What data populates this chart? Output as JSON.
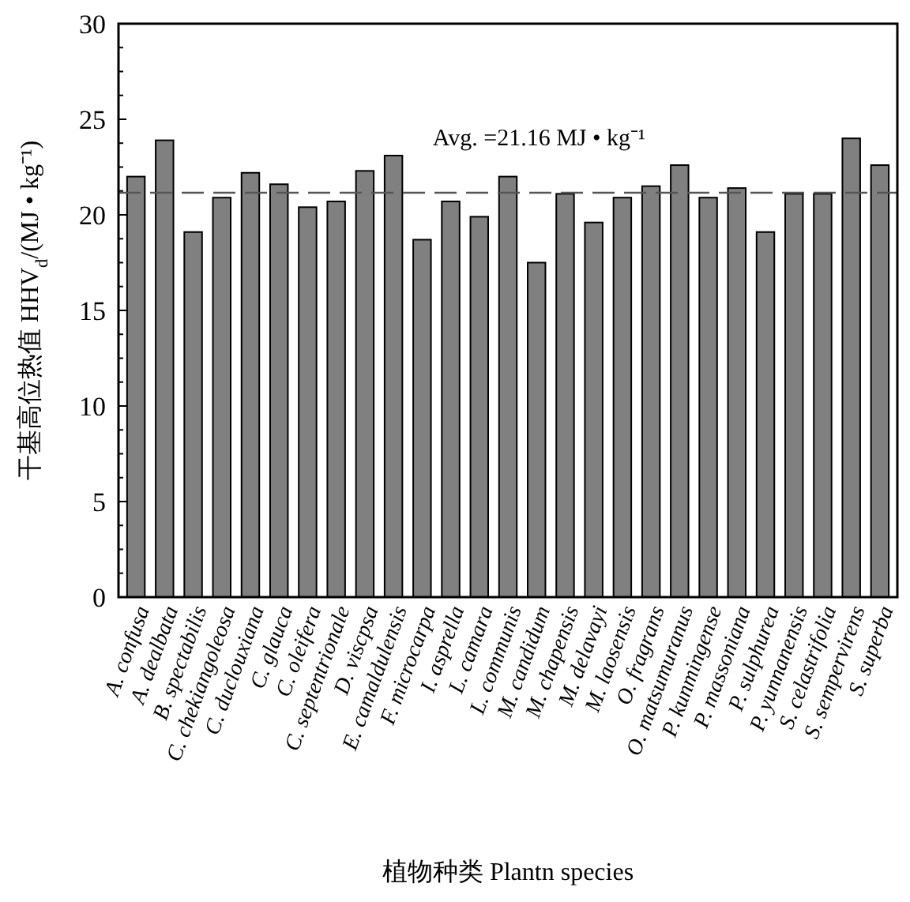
{
  "chart_data": {
    "type": "bar",
    "xlabel": "植物种类 Plantn species",
    "ylabel": "干基高位热值 HHV$_{d}$/(MJ • kg⁻¹)",
    "categories": [
      "A. confusa",
      "A. dealbata",
      "B. spectabilis",
      "C. chekiangoleosa",
      "C. duclouxiana",
      "C. glauca",
      "C. oleifera",
      "C. septentrionale",
      "D. viscpsa",
      "E. camaldulensis",
      "F. microcarpa",
      "I. asprella",
      "L. camara",
      "L. communis",
      "M. candidum",
      "M. chapensis",
      "M. delavayi",
      "M. laosensis",
      "O. fragrans",
      "O. matsumuranus",
      "P. kunmingense",
      "P. massoniana",
      "P. sulphurea",
      "P. yunnanensis",
      "S. celastrifolia",
      "S. sempervirens",
      "S. superba"
    ],
    "values": [
      22.0,
      23.9,
      19.1,
      20.9,
      22.2,
      21.6,
      20.4,
      20.7,
      22.3,
      23.1,
      18.7,
      20.7,
      19.9,
      22.0,
      17.5,
      21.1,
      19.6,
      20.9,
      21.5,
      22.6,
      20.9,
      21.4,
      19.1,
      21.1,
      21.1,
      24.0,
      22.6
    ],
    "color": "#808080",
    "ylim": [
      0,
      30
    ],
    "yticks": [
      0,
      {
        "value": 1.25,
        "label": null
      },
      {
        "value": 2.5,
        "label": null
      },
      {
        "value": 3.75,
        "label": null
      },
      5,
      {
        "value": 6.25,
        "label": null
      },
      {
        "value": 7.5,
        "label": null
      },
      {
        "value": 8.75,
        "label": null
      },
      10,
      {
        "value": 11.25,
        "label": null
      },
      {
        "value": 12.5,
        "label": null
      },
      {
        "value": 13.75,
        "label": null
      },
      15,
      {
        "value": 16.25,
        "label": null
      },
      {
        "value": 17.5,
        "label": null
      },
      {
        "value": 18.75,
        "label": null
      },
      20,
      {
        "value": 21.25,
        "label": null
      },
      {
        "value": 22.5,
        "label": null
      },
      {
        "value": 23.75,
        "label": null
      },
      25,
      {
        "value": 26.25,
        "label": null
      },
      {
        "value": 27.5,
        "label": null
      },
      {
        "value": 28.75,
        "label": null
      },
      30
    ],
    "ref_lines": [
      {
        "axis": "y",
        "value": 21.16,
        "label": "Avg. =21.16 MJ • kg⁻¹",
        "color": "#555555",
        "line_style": "dashed"
      }
    ],
    "grid": false
  }
}
